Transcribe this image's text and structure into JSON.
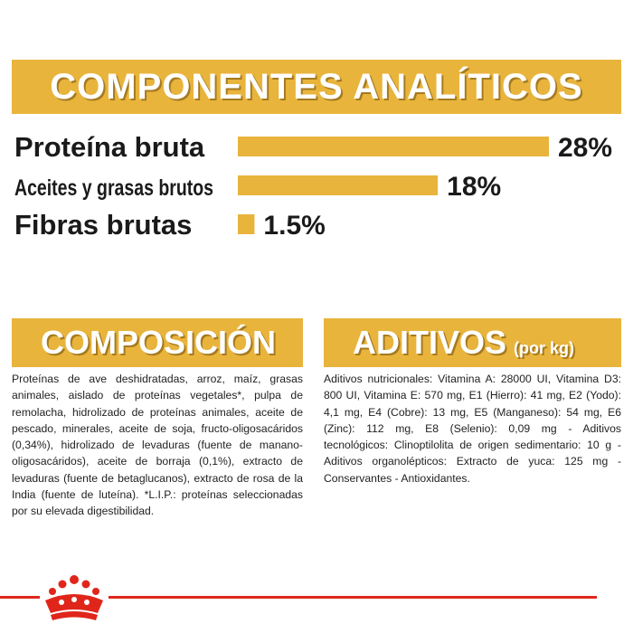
{
  "analytic": {
    "title": "COMPONENTES ANALÍTICOS"
  },
  "chart_data": {
    "type": "bar",
    "orientation": "horizontal",
    "title": "COMPONENTES ANALÍTICOS",
    "categories": [
      "Proteína bruta",
      "Aceites y grasas brutos",
      "Fibras brutas"
    ],
    "values": [
      28,
      18,
      1.5
    ],
    "value_labels": [
      "28%",
      "18%",
      "1.5%"
    ],
    "unit": "%",
    "bar_color": "#e8b43c",
    "grid": false
  },
  "composition": {
    "title": "COMPOSICIÓN",
    "text": "Proteínas de ave deshidratadas, arroz, maíz, grasas animales, aislado de proteínas vegetales*, pulpa de remolacha, hidrolizado de proteínas animales, aceite de pescado, minerales, aceite de soja, fructo-oligosacáridos (0,34%), hidrolizado de levaduras (fuente de manano-oligosacáridos), aceite de borraja (0,1%), extracto de levaduras (fuente de betaglucanos), extracto de rosa de la India (fuente de luteína). *L.I.P.: proteínas seleccionadas por su elevada digestibilidad."
  },
  "additives": {
    "title": "ADITIVOS",
    "subtitle": "(por kg)",
    "text": "Aditivos nutricionales: Vitamina A: 28000 UI, Vitamina D3: 800 UI, Vitamina E: 570 mg, E1 (Hierro): 41 mg, E2 (Yodo): 4,1 mg, E4 (Cobre): 13 mg, E5 (Manganeso): 54 mg, E6 (Zinc): 112 mg, E8 (Selenio): 0,09 mg - Aditivos tecnológicos: Clinoptilolita de origen sedimentario: 10 g - Aditivos organolépticos: Extracto de yuca: 125 mg - Conservantes - Antioxidantes."
  },
  "footer": {
    "logo": "royal-canin-crown-icon",
    "line_color": "#e0261b"
  }
}
